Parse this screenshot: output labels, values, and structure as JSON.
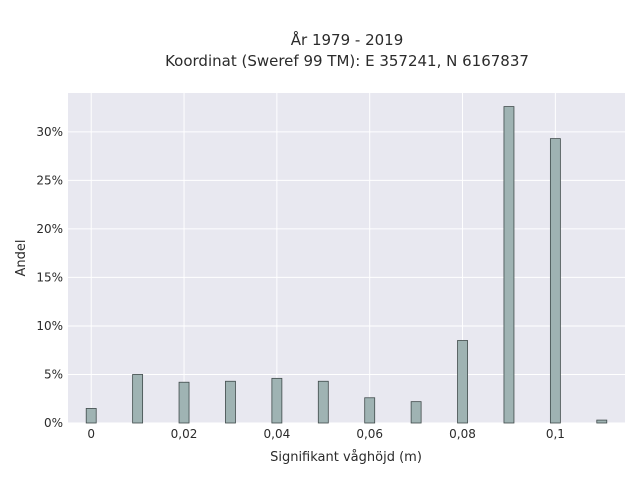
{
  "chart_data": {
    "type": "bar",
    "title_lines": [
      "År 1979 - 2019",
      "Koordinat (Sweref 99 TM): E 357241, N 6167837"
    ],
    "xlabel": "Signifikant våghöjd (m)",
    "ylabel": "Andel",
    "x": [
      0,
      0.01,
      0.02,
      0.03,
      0.04,
      0.05,
      0.06,
      0.07,
      0.08,
      0.09,
      0.1,
      0.11
    ],
    "values": [
      1.5,
      5.0,
      4.2,
      4.3,
      4.6,
      4.3,
      2.6,
      2.2,
      8.5,
      32.6,
      29.3,
      0.3
    ],
    "xlim": [
      -0.005,
      0.115
    ],
    "ylim": [
      0,
      34
    ],
    "x_ticks": [
      0,
      0.02,
      0.04,
      0.06,
      0.08,
      0.1
    ],
    "x_tick_labels": [
      "0",
      "0,02",
      "0,04",
      "0,06",
      "0,08",
      "0,1"
    ],
    "y_ticks": [
      0,
      5,
      10,
      15,
      20,
      25,
      30
    ],
    "y_tick_labels": [
      "0%",
      "5%",
      "10%",
      "15%",
      "20%",
      "25%",
      "30%"
    ],
    "grid": true,
    "bar_color": "#9fb3b3",
    "bar_edge_color": "#3f4a4a",
    "plot_background": "#e8e8f0"
  }
}
